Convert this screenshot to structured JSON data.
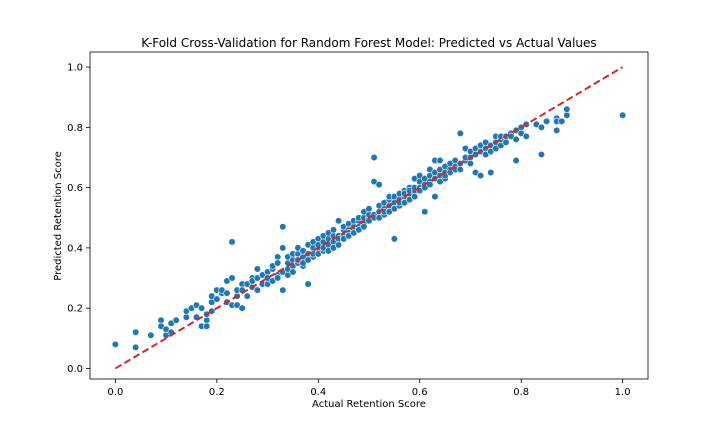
{
  "chart_data": {
    "type": "scatter",
    "title": "K-Fold Cross-Validation for Random Forest Model: Predicted vs Actual Values",
    "xlabel": "Actual Retention Score",
    "ylabel": "Predicted Retention Score",
    "xlim": [
      -0.05,
      1.05
    ],
    "ylim": [
      -0.035,
      1.05
    ],
    "xticks": [
      "0.0",
      "0.2",
      "0.4",
      "0.6",
      "0.8",
      "1.0"
    ],
    "yticks": [
      "0.0",
      "0.2",
      "0.4",
      "0.6",
      "0.8",
      "1.0"
    ],
    "grid": false,
    "point_color": "#1f77b4",
    "line_color": "#d62728",
    "reference_line": {
      "x": [
        0.0,
        1.0
      ],
      "y": [
        0.0,
        1.0
      ],
      "style": "dashed"
    },
    "points": [
      [
        0.0,
        0.08
      ],
      [
        0.04,
        0.12
      ],
      [
        0.04,
        0.07
      ],
      [
        0.07,
        0.11
      ],
      [
        0.09,
        0.16
      ],
      [
        0.09,
        0.14
      ],
      [
        0.1,
        0.11
      ],
      [
        0.1,
        0.13
      ],
      [
        0.11,
        0.15
      ],
      [
        0.11,
        0.12
      ],
      [
        0.12,
        0.16
      ],
      [
        0.14,
        0.17
      ],
      [
        0.14,
        0.19
      ],
      [
        0.15,
        0.2
      ],
      [
        0.16,
        0.17
      ],
      [
        0.16,
        0.21
      ],
      [
        0.17,
        0.14
      ],
      [
        0.17,
        0.2
      ],
      [
        0.18,
        0.16
      ],
      [
        0.18,
        0.14
      ],
      [
        0.18,
        0.18
      ],
      [
        0.19,
        0.22
      ],
      [
        0.19,
        0.24
      ],
      [
        0.19,
        0.19
      ],
      [
        0.2,
        0.26
      ],
      [
        0.2,
        0.23
      ],
      [
        0.21,
        0.25
      ],
      [
        0.21,
        0.26
      ],
      [
        0.22,
        0.25
      ],
      [
        0.22,
        0.22
      ],
      [
        0.22,
        0.29
      ],
      [
        0.23,
        0.3
      ],
      [
        0.23,
        0.21
      ],
      [
        0.23,
        0.42
      ],
      [
        0.24,
        0.24
      ],
      [
        0.24,
        0.21
      ],
      [
        0.24,
        0.26
      ],
      [
        0.25,
        0.28
      ],
      [
        0.25,
        0.26
      ],
      [
        0.25,
        0.2
      ],
      [
        0.26,
        0.28
      ],
      [
        0.26,
        0.24
      ],
      [
        0.27,
        0.27
      ],
      [
        0.27,
        0.3
      ],
      [
        0.27,
        0.29
      ],
      [
        0.28,
        0.26
      ],
      [
        0.28,
        0.33
      ],
      [
        0.28,
        0.3
      ],
      [
        0.29,
        0.28
      ],
      [
        0.29,
        0.31
      ],
      [
        0.3,
        0.32
      ],
      [
        0.3,
        0.28
      ],
      [
        0.3,
        0.3
      ],
      [
        0.31,
        0.33
      ],
      [
        0.31,
        0.29
      ],
      [
        0.31,
        0.34
      ],
      [
        0.32,
        0.37
      ],
      [
        0.32,
        0.31
      ],
      [
        0.32,
        0.35
      ],
      [
        0.32,
        0.3
      ],
      [
        0.33,
        0.26
      ],
      [
        0.33,
        0.4
      ],
      [
        0.33,
        0.47
      ],
      [
        0.33,
        0.32
      ],
      [
        0.34,
        0.31
      ],
      [
        0.34,
        0.35
      ],
      [
        0.34,
        0.33
      ],
      [
        0.34,
        0.37
      ],
      [
        0.35,
        0.36
      ],
      [
        0.35,
        0.34
      ],
      [
        0.35,
        0.38
      ],
      [
        0.35,
        0.32
      ],
      [
        0.36,
        0.35
      ],
      [
        0.36,
        0.38
      ],
      [
        0.36,
        0.36
      ],
      [
        0.36,
        0.4
      ],
      [
        0.37,
        0.37
      ],
      [
        0.37,
        0.34
      ],
      [
        0.37,
        0.39
      ],
      [
        0.37,
        0.35
      ],
      [
        0.38,
        0.41
      ],
      [
        0.38,
        0.38
      ],
      [
        0.38,
        0.36
      ],
      [
        0.38,
        0.28
      ],
      [
        0.39,
        0.4
      ],
      [
        0.39,
        0.37
      ],
      [
        0.39,
        0.42
      ],
      [
        0.39,
        0.38
      ],
      [
        0.4,
        0.4
      ],
      [
        0.4,
        0.43
      ],
      [
        0.4,
        0.38
      ],
      [
        0.4,
        0.41
      ],
      [
        0.41,
        0.42
      ],
      [
        0.41,
        0.39
      ],
      [
        0.41,
        0.44
      ],
      [
        0.41,
        0.4
      ],
      [
        0.42,
        0.43
      ],
      [
        0.42,
        0.41
      ],
      [
        0.42,
        0.45
      ],
      [
        0.42,
        0.39
      ],
      [
        0.43,
        0.44
      ],
      [
        0.43,
        0.42
      ],
      [
        0.43,
        0.46
      ],
      [
        0.43,
        0.4
      ],
      [
        0.44,
        0.44
      ],
      [
        0.44,
        0.43
      ],
      [
        0.44,
        0.49
      ],
      [
        0.44,
        0.41
      ],
      [
        0.45,
        0.46
      ],
      [
        0.45,
        0.44
      ],
      [
        0.45,
        0.47
      ],
      [
        0.45,
        0.43
      ],
      [
        0.46,
        0.46
      ],
      [
        0.46,
        0.45
      ],
      [
        0.46,
        0.48
      ],
      [
        0.46,
        0.44
      ],
      [
        0.47,
        0.47
      ],
      [
        0.47,
        0.49
      ],
      [
        0.47,
        0.46
      ],
      [
        0.47,
        0.45
      ],
      [
        0.48,
        0.49
      ],
      [
        0.48,
        0.47
      ],
      [
        0.48,
        0.5
      ],
      [
        0.48,
        0.46
      ],
      [
        0.49,
        0.5
      ],
      [
        0.49,
        0.48
      ],
      [
        0.49,
        0.52
      ],
      [
        0.49,
        0.47
      ],
      [
        0.5,
        0.5
      ],
      [
        0.5,
        0.51
      ],
      [
        0.5,
        0.49
      ],
      [
        0.5,
        0.53
      ],
      [
        0.51,
        0.51
      ],
      [
        0.51,
        0.62
      ],
      [
        0.51,
        0.5
      ],
      [
        0.51,
        0.7
      ],
      [
        0.52,
        0.52
      ],
      [
        0.52,
        0.54
      ],
      [
        0.52,
        0.5
      ],
      [
        0.52,
        0.61
      ],
      [
        0.53,
        0.53
      ],
      [
        0.53,
        0.51
      ],
      [
        0.53,
        0.55
      ],
      [
        0.53,
        0.52
      ],
      [
        0.54,
        0.54
      ],
      [
        0.54,
        0.56
      ],
      [
        0.54,
        0.52
      ],
      [
        0.54,
        0.57
      ],
      [
        0.55,
        0.55
      ],
      [
        0.55,
        0.53
      ],
      [
        0.55,
        0.43
      ],
      [
        0.55,
        0.57
      ],
      [
        0.56,
        0.56
      ],
      [
        0.56,
        0.58
      ],
      [
        0.56,
        0.54
      ],
      [
        0.56,
        0.55
      ],
      [
        0.57,
        0.57
      ],
      [
        0.57,
        0.55
      ],
      [
        0.57,
        0.59
      ],
      [
        0.57,
        0.58
      ],
      [
        0.58,
        0.58
      ],
      [
        0.58,
        0.6
      ],
      [
        0.58,
        0.56
      ],
      [
        0.58,
        0.59
      ],
      [
        0.59,
        0.59
      ],
      [
        0.59,
        0.6
      ],
      [
        0.59,
        0.63
      ],
      [
        0.59,
        0.57
      ],
      [
        0.6,
        0.6
      ],
      [
        0.6,
        0.62
      ],
      [
        0.6,
        0.64
      ],
      [
        0.6,
        0.59
      ],
      [
        0.61,
        0.61
      ],
      [
        0.61,
        0.6
      ],
      [
        0.61,
        0.63
      ],
      [
        0.61,
        0.52
      ],
      [
        0.62,
        0.62
      ],
      [
        0.62,
        0.64
      ],
      [
        0.62,
        0.66
      ],
      [
        0.62,
        0.61
      ],
      [
        0.63,
        0.63
      ],
      [
        0.63,
        0.65
      ],
      [
        0.63,
        0.69
      ],
      [
        0.63,
        0.57
      ],
      [
        0.64,
        0.64
      ],
      [
        0.64,
        0.62
      ],
      [
        0.64,
        0.69
      ],
      [
        0.64,
        0.66
      ],
      [
        0.65,
        0.65
      ],
      [
        0.65,
        0.63
      ],
      [
        0.65,
        0.67
      ],
      [
        0.65,
        0.64
      ],
      [
        0.66,
        0.66
      ],
      [
        0.66,
        0.68
      ],
      [
        0.66,
        0.65
      ],
      [
        0.67,
        0.67
      ],
      [
        0.67,
        0.66
      ],
      [
        0.67,
        0.69
      ],
      [
        0.68,
        0.68
      ],
      [
        0.68,
        0.78
      ],
      [
        0.68,
        0.66
      ],
      [
        0.69,
        0.69
      ],
      [
        0.69,
        0.7
      ],
      [
        0.69,
        0.73
      ],
      [
        0.7,
        0.7
      ],
      [
        0.7,
        0.68
      ],
      [
        0.7,
        0.72
      ],
      [
        0.71,
        0.71
      ],
      [
        0.71,
        0.65
      ],
      [
        0.71,
        0.73
      ],
      [
        0.72,
        0.72
      ],
      [
        0.72,
        0.64
      ],
      [
        0.72,
        0.74
      ],
      [
        0.73,
        0.73
      ],
      [
        0.73,
        0.71
      ],
      [
        0.73,
        0.75
      ],
      [
        0.74,
        0.74
      ],
      [
        0.74,
        0.65
      ],
      [
        0.74,
        0.72
      ],
      [
        0.75,
        0.75
      ],
      [
        0.75,
        0.73
      ],
      [
        0.75,
        0.77
      ],
      [
        0.76,
        0.76
      ],
      [
        0.76,
        0.74
      ],
      [
        0.76,
        0.77
      ],
      [
        0.77,
        0.77
      ],
      [
        0.77,
        0.75
      ],
      [
        0.78,
        0.78
      ],
      [
        0.78,
        0.77
      ],
      [
        0.79,
        0.79
      ],
      [
        0.79,
        0.69
      ],
      [
        0.79,
        0.76
      ],
      [
        0.8,
        0.8
      ],
      [
        0.8,
        0.78
      ],
      [
        0.81,
        0.81
      ],
      [
        0.81,
        0.77
      ],
      [
        0.83,
        0.81
      ],
      [
        0.84,
        0.71
      ],
      [
        0.84,
        0.8
      ],
      [
        0.85,
        0.82
      ],
      [
        0.87,
        0.83
      ],
      [
        0.87,
        0.82
      ],
      [
        0.87,
        0.79
      ],
      [
        0.88,
        0.82
      ],
      [
        0.89,
        0.84
      ],
      [
        0.89,
        0.86
      ],
      [
        1.0,
        0.84
      ]
    ]
  }
}
